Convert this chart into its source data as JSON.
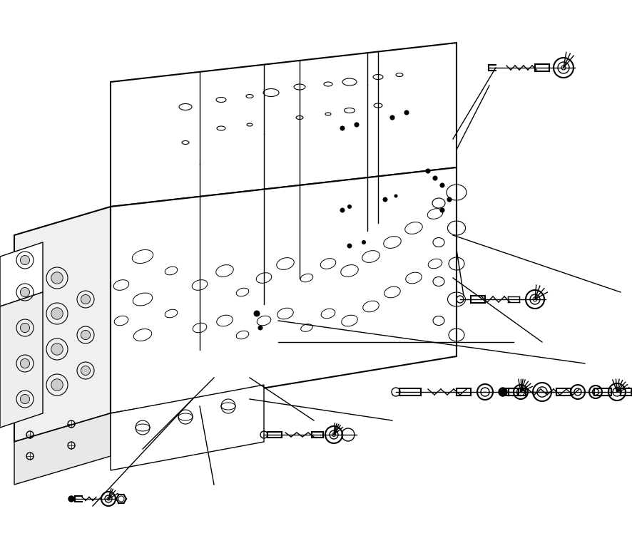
{
  "bg_color": "#ffffff",
  "line_color": "#000000",
  "fig_width": 8.87,
  "fig_height": 7.76,
  "dpi": 100
}
